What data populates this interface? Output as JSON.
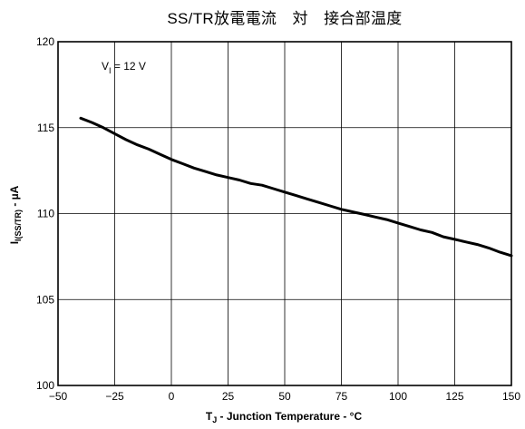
{
  "chart_data": {
    "type": "line",
    "title": "SS/TR放電電流　対　接合部温度",
    "xlabel": {
      "main": "T",
      "sub": "J",
      "rest": " - Junction Temperature - °C"
    },
    "ylabel": {
      "main": "I",
      "sub": "I(SS/TR)",
      "rest": " - µA"
    },
    "annotation": {
      "main": "V",
      "sub": "I",
      "rest": " = 12 V"
    },
    "xlim": [
      -50,
      150
    ],
    "ylim": [
      100,
      120
    ],
    "x_ticks": [
      -50,
      -25,
      0,
      25,
      50,
      75,
      100,
      125,
      150
    ],
    "x_tick_labels": [
      "−50",
      "−25",
      "0",
      "25",
      "50",
      "75",
      "100",
      "125",
      "150"
    ],
    "y_ticks": [
      100,
      105,
      110,
      115,
      120
    ],
    "y_tick_labels": [
      "100",
      "105",
      "110",
      "115",
      "120"
    ],
    "grid": true,
    "series": [
      {
        "color": "#000000",
        "x": [
          -40,
          -35,
          -30,
          -25,
          -20,
          -15,
          -10,
          -5,
          0,
          5,
          10,
          15,
          20,
          25,
          30,
          35,
          40,
          45,
          50,
          55,
          60,
          65,
          70,
          75,
          80,
          85,
          90,
          95,
          100,
          105,
          110,
          115,
          120,
          125,
          130,
          135,
          140,
          145,
          150
        ],
        "y": [
          115.55,
          115.3,
          115.0,
          114.65,
          114.3,
          114.0,
          113.75,
          113.45,
          113.15,
          112.9,
          112.65,
          112.45,
          112.25,
          112.1,
          111.95,
          111.75,
          111.65,
          111.45,
          111.25,
          111.05,
          110.85,
          110.65,
          110.45,
          110.25,
          110.1,
          109.95,
          109.8,
          109.65,
          109.45,
          109.25,
          109.05,
          108.9,
          108.65,
          108.5,
          108.35,
          108.2,
          108.0,
          107.75,
          107.55
        ]
      }
    ]
  }
}
